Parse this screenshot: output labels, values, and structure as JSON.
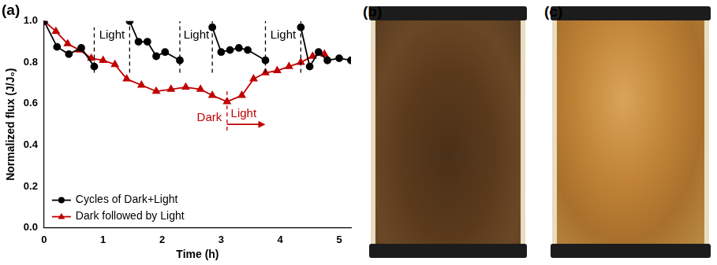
{
  "chart_data": {
    "type": "line",
    "title": "(a)",
    "x_label": "Time (h)",
    "y_label": "Normalized flux (J/J₀)",
    "xlim": [
      0,
      5.2
    ],
    "xticks": [
      0,
      1,
      2,
      3,
      4,
      5
    ],
    "ylim": [
      0,
      1
    ],
    "yticks": [
      {
        "value": 0,
        "label": "0.0"
      },
      0.2,
      0.4,
      0.6,
      0.8,
      {
        "value": 1,
        "label": "1.0"
      }
    ],
    "grid": false,
    "legend": "lower left",
    "series": [
      {
        "name": "Cycles of Dark+Light",
        "color": "#000000",
        "marker": "circle",
        "line_style": "solid",
        "x": [
          0,
          0.22,
          0.42,
          0.63,
          0.85,
          null,
          1.45,
          1.6,
          1.75,
          1.9,
          2.05,
          2.3,
          null,
          2.85,
          3.0,
          3.15,
          3.3,
          3.45,
          3.75,
          null,
          4.35,
          4.5,
          4.65,
          4.8,
          5.0,
          5.2
        ],
        "values": [
          1.0,
          0.875,
          0.84,
          0.87,
          0.78,
          null,
          1.0,
          0.9,
          0.9,
          0.83,
          0.85,
          0.81,
          null,
          0.97,
          0.85,
          0.86,
          0.87,
          0.86,
          0.81,
          null,
          0.97,
          0.78,
          0.85,
          0.81,
          0.82,
          0.81
        ]
      },
      {
        "name": "Dark followed by Light",
        "color": "#c00000",
        "marker": "triangle",
        "line_style": "solid",
        "x": [
          0,
          0.2,
          0.4,
          0.6,
          0.8,
          1.0,
          1.2,
          1.4,
          1.65,
          1.9,
          2.15,
          2.4,
          2.65,
          2.85,
          3.1,
          3.35,
          3.55,
          3.75,
          3.95,
          4.15,
          4.35,
          4.55,
          4.75
        ],
        "values": [
          1.0,
          0.95,
          0.89,
          0.86,
          0.82,
          0.81,
          0.79,
          0.72,
          0.69,
          0.66,
          0.67,
          0.68,
          0.67,
          0.64,
          0.61,
          0.64,
          0.72,
          0.75,
          0.76,
          0.78,
          0.8,
          0.83,
          0.84
        ]
      }
    ],
    "vlines": [
      {
        "x": 0.85,
        "y": [
          0.75,
          0.97
        ],
        "color": "#000000",
        "line_style": "dashed"
      },
      {
        "x": 1.45,
        "y": [
          0.75,
          1.0
        ],
        "color": "#000000",
        "line_style": "dashed"
      },
      {
        "x": 2.3,
        "y": [
          0.75,
          1.0
        ],
        "color": "#000000",
        "line_style": "dashed"
      },
      {
        "x": 2.85,
        "y": [
          0.75,
          1.0
        ],
        "color": "#000000",
        "line_style": "dashed"
      },
      {
        "x": 3.75,
        "y": [
          0.75,
          1.0
        ],
        "color": "#000000",
        "line_style": "dashed"
      },
      {
        "x": 4.35,
        "y": [
          0.75,
          1.0
        ],
        "color": "#000000",
        "line_style": "dashed"
      },
      {
        "x": 3.1,
        "y": [
          0.47,
          0.67
        ],
        "color": "#c00000",
        "line_style": "dashed"
      }
    ],
    "annotations": [
      {
        "text": "Light",
        "x": 1.15,
        "y": 0.93,
        "color": "#000000"
      },
      {
        "text": "Light",
        "x": 2.58,
        "y": 0.93,
        "color": "#000000"
      },
      {
        "text": "Light",
        "x": 4.05,
        "y": 0.93,
        "color": "#000000"
      },
      {
        "text": "Dark",
        "x": 2.8,
        "y": 0.53,
        "color": "#c00000"
      },
      {
        "text": "Light",
        "x": 3.38,
        "y": 0.55,
        "color": "#c00000"
      }
    ],
    "arrows": [
      {
        "x": [
          3.1,
          3.75
        ],
        "y": 0.5,
        "color": "#c00000"
      }
    ]
  },
  "panels": [
    {
      "label": "(b)"
    },
    {
      "label": "(c)"
    }
  ]
}
